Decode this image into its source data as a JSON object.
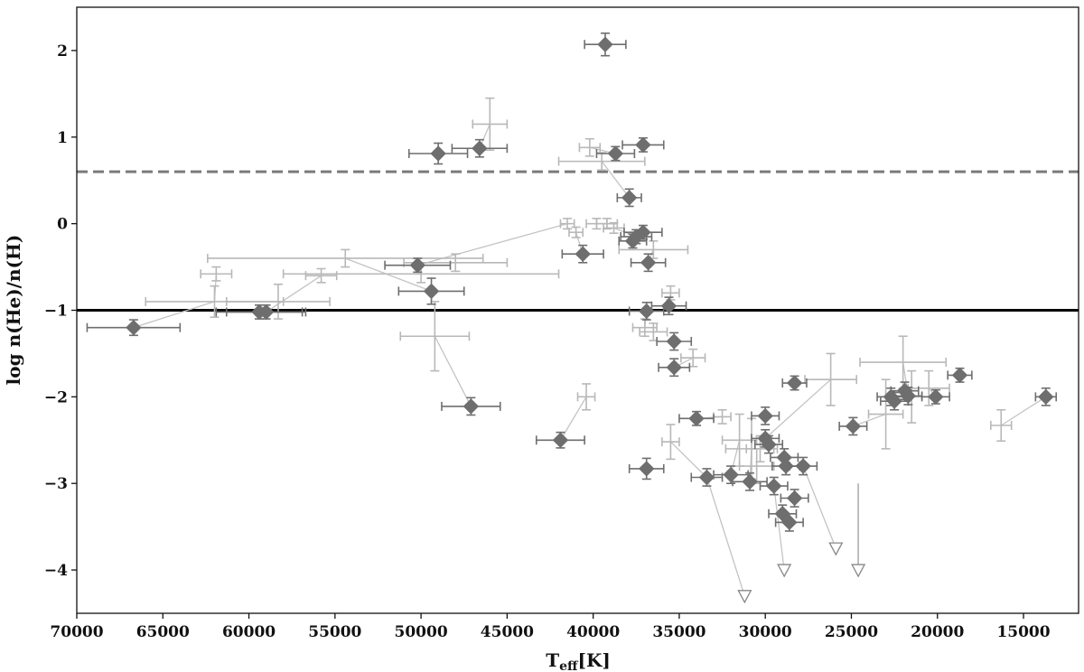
{
  "chart_data": {
    "type": "scatter",
    "xlabel": "T",
    "xlabel_sub": "eff",
    "xlabel_unit": "[K]",
    "ylabel": "log n(He)/n(H)",
    "xlim": [
      70000,
      11800
    ],
    "ylim": [
      -4.5,
      2.5
    ],
    "x_ticks": [
      70000,
      65000,
      60000,
      55000,
      50000,
      45000,
      40000,
      35000,
      30000,
      25000,
      20000,
      15000
    ],
    "x_tick_labels": [
      "70000",
      "65000",
      "60000",
      "55000",
      "50000",
      "45000",
      "40000",
      "35000",
      "30000",
      "25000",
      "20000",
      "15000"
    ],
    "y_ticks": [
      2,
      1,
      0,
      -1,
      -2,
      -3,
      -4
    ],
    "y_tick_labels": [
      "2",
      "1",
      "0",
      "−1",
      "−2",
      "−3",
      "−4"
    ],
    "grid": false,
    "reference_lines": [
      {
        "y": 0.6,
        "style": "dashed",
        "color": "#7a7a7a"
      },
      {
        "y": -1.0,
        "style": "solid",
        "color": "#000000"
      }
    ],
    "colors": {
      "dark": "#6e6e6e",
      "light": "#b8b8b8",
      "link": "#c4c4c4"
    },
    "dark_points": [
      {
        "x": 66700,
        "y": -1.2,
        "xerr": 2700,
        "yerr": 0.09
      },
      {
        "x": 59400,
        "y": -1.02,
        "xerr": 2500,
        "yerr": 0.08
      },
      {
        "x": 59000,
        "y": -1.02,
        "xerr": 2300,
        "yerr": 0.08
      },
      {
        "x": 50200,
        "y": -0.48,
        "xerr": 1900,
        "yerr": 0.08
      },
      {
        "x": 49400,
        "y": -0.78,
        "xerr": 1900,
        "yerr": 0.15
      },
      {
        "x": 49000,
        "y": 0.81,
        "xerr": 1700,
        "yerr": 0.12
      },
      {
        "x": 46600,
        "y": 0.87,
        "xerr": 1600,
        "yerr": 0.1
      },
      {
        "x": 47100,
        "y": -2.11,
        "xerr": 1700,
        "yerr": 0.1
      },
      {
        "x": 41900,
        "y": -2.5,
        "xerr": 1400,
        "yerr": 0.09
      },
      {
        "x": 40600,
        "y": -0.35,
        "xerr": 1200,
        "yerr": 0.1
      },
      {
        "x": 39300,
        "y": 2.07,
        "xerr": 1200,
        "yerr": 0.13
      },
      {
        "x": 38700,
        "y": 0.81,
        "xerr": 1100,
        "yerr": 0.08
      },
      {
        "x": 37100,
        "y": 0.91,
        "xerr": 1200,
        "yerr": 0.08
      },
      {
        "x": 37900,
        "y": 0.3,
        "xerr": 700,
        "yerr": 0.1
      },
      {
        "x": 37700,
        "y": -0.2,
        "xerr": 800,
        "yerr": 0.08
      },
      {
        "x": 37500,
        "y": -0.15,
        "xerr": 900,
        "yerr": 0.08
      },
      {
        "x": 37100,
        "y": -0.1,
        "xerr": 1100,
        "yerr": 0.08
      },
      {
        "x": 36800,
        "y": -0.45,
        "xerr": 1000,
        "yerr": 0.1
      },
      {
        "x": 36900,
        "y": -1.01,
        "xerr": 1000,
        "yerr": 0.1
      },
      {
        "x": 36900,
        "y": -2.83,
        "xerr": 1000,
        "yerr": 0.12
      },
      {
        "x": 35600,
        "y": -0.95,
        "xerr": 1000,
        "yerr": 0.1
      },
      {
        "x": 35300,
        "y": -1.36,
        "xerr": 1000,
        "yerr": 0.1
      },
      {
        "x": 35300,
        "y": -1.66,
        "xerr": 900,
        "yerr": 0.1
      },
      {
        "x": 34000,
        "y": -2.25,
        "xerr": 1000,
        "yerr": 0.08
      },
      {
        "x": 33400,
        "y": -2.93,
        "xerr": 900,
        "yerr": 0.1
      },
      {
        "x": 32000,
        "y": -2.9,
        "xerr": 1000,
        "yerr": 0.1
      },
      {
        "x": 30900,
        "y": -2.98,
        "xerr": 1000,
        "yerr": 0.1
      },
      {
        "x": 30000,
        "y": -2.22,
        "xerr": 800,
        "yerr": 0.1
      },
      {
        "x": 30000,
        "y": -2.48,
        "xerr": 800,
        "yerr": 0.1
      },
      {
        "x": 29800,
        "y": -2.55,
        "xerr": 800,
        "yerr": 0.1
      },
      {
        "x": 29500,
        "y": -3.03,
        "xerr": 800,
        "yerr": 0.1
      },
      {
        "x": 28900,
        "y": -2.7,
        "xerr": 800,
        "yerr": 0.1
      },
      {
        "x": 28800,
        "y": -2.8,
        "xerr": 800,
        "yerr": 0.1
      },
      {
        "x": 29000,
        "y": -3.35,
        "xerr": 800,
        "yerr": 0.1
      },
      {
        "x": 28600,
        "y": -3.45,
        "xerr": 800,
        "yerr": 0.1
      },
      {
        "x": 28300,
        "y": -3.17,
        "xerr": 800,
        "yerr": 0.1
      },
      {
        "x": 27800,
        "y": -2.8,
        "xerr": 800,
        "yerr": 0.1
      },
      {
        "x": 28300,
        "y": -1.84,
        "xerr": 700,
        "yerr": 0.08
      },
      {
        "x": 24900,
        "y": -2.34,
        "xerr": 800,
        "yerr": 0.1
      },
      {
        "x": 22700,
        "y": -2.0,
        "xerr": 800,
        "yerr": 0.1
      },
      {
        "x": 22500,
        "y": -2.05,
        "xerr": 800,
        "yerr": 0.1
      },
      {
        "x": 21900,
        "y": -1.93,
        "xerr": 800,
        "yerr": 0.1
      },
      {
        "x": 21700,
        "y": -1.99,
        "xerr": 800,
        "yerr": 0.1
      },
      {
        "x": 20100,
        "y": -2.0,
        "xerr": 800,
        "yerr": 0.08
      },
      {
        "x": 18700,
        "y": -1.75,
        "xerr": 700,
        "yerr": 0.08
      },
      {
        "x": 13700,
        "y": -2.0,
        "xerr": 600,
        "yerr": 0.1
      }
    ],
    "light_points": [
      {
        "x": 61900,
        "y": -0.58,
        "xerr": 900,
        "yerr": 0.08
      },
      {
        "x": 62000,
        "y": -0.9,
        "xerr": 4000,
        "yerr": 0.18
      },
      {
        "x": 58300,
        "y": -0.9,
        "xerr": 3000,
        "yerr": 0.2
      },
      {
        "x": 55800,
        "y": -0.6,
        "xerr": 900,
        "yerr": 0.08
      },
      {
        "x": 54400,
        "y": -0.4,
        "xerr": 8000,
        "yerr": 0.1
      },
      {
        "x": 50000,
        "y": -0.58,
        "xerr": 8000,
        "yerr": 0.1
      },
      {
        "x": 48000,
        "y": -0.45,
        "xerr": 3000,
        "yerr": 0.1
      },
      {
        "x": 49200,
        "y": -1.3,
        "xerr": 2000,
        "yerr": 0.4
      },
      {
        "x": 46000,
        "y": 1.15,
        "xerr": 1000,
        "yerr": 0.3
      },
      {
        "x": 40400,
        "y": -2.0,
        "xerr": 500,
        "yerr": 0.15
      },
      {
        "x": 41500,
        "y": 0.0,
        "xerr": 400,
        "yerr": 0.06
      },
      {
        "x": 41000,
        "y": -0.1,
        "xerr": 400,
        "yerr": 0.06
      },
      {
        "x": 40200,
        "y": 0.88,
        "xerr": 600,
        "yerr": 0.1
      },
      {
        "x": 39500,
        "y": 0.72,
        "xerr": 2500,
        "yerr": 0.1
      },
      {
        "x": 39800,
        "y": 0.0,
        "xerr": 600,
        "yerr": 0.06
      },
      {
        "x": 39200,
        "y": 0.0,
        "xerr": 600,
        "yerr": 0.06
      },
      {
        "x": 38800,
        "y": -0.05,
        "xerr": 600,
        "yerr": 0.06
      },
      {
        "x": 36500,
        "y": -0.3,
        "xerr": 2000,
        "yerr": 0.1
      },
      {
        "x": 37000,
        "y": -1.2,
        "xerr": 700,
        "yerr": 0.1
      },
      {
        "x": 36500,
        "y": -1.25,
        "xerr": 800,
        "yerr": 0.1
      },
      {
        "x": 35500,
        "y": -0.8,
        "xerr": 500,
        "yerr": 0.08
      },
      {
        "x": 34200,
        "y": -1.55,
        "xerr": 700,
        "yerr": 0.1
      },
      {
        "x": 35500,
        "y": -2.52,
        "xerr": 500,
        "yerr": 0.2
      },
      {
        "x": 32500,
        "y": -2.23,
        "xerr": 500,
        "yerr": 0.08
      },
      {
        "x": 31500,
        "y": -2.5,
        "xerr": 1000,
        "yerr": 0.3
      },
      {
        "x": 30800,
        "y": -2.6,
        "xerr": 1500,
        "yerr": 0.35
      },
      {
        "x": 30500,
        "y": -2.8,
        "xerr": 1000,
        "yerr": 0.2
      },
      {
        "x": 30300,
        "y": -2.6,
        "xerr": 800,
        "yerr": 0.15
      },
      {
        "x": 26200,
        "y": -1.8,
        "xerr": 1500,
        "yerr": 0.3
      },
      {
        "x": 23000,
        "y": -2.2,
        "xerr": 1000,
        "yerr": 0.4
      },
      {
        "x": 22000,
        "y": -1.6,
        "xerr": 2500,
        "yerr": 0.3
      },
      {
        "x": 21500,
        "y": -2.0,
        "xerr": 1500,
        "yerr": 0.3
      },
      {
        "x": 20500,
        "y": -1.9,
        "xerr": 1200,
        "yerr": 0.2
      },
      {
        "x": 16300,
        "y": -2.33,
        "xerr": 600,
        "yerr": 0.18
      }
    ],
    "upper_limits": [
      {
        "x": 31200,
        "y": -4.3
      },
      {
        "x": 28900,
        "y": -4.0
      },
      {
        "x": 25900,
        "y": -3.75
      },
      {
        "x": 24600,
        "y": -4.0,
        "arrow_from": -3.0
      }
    ],
    "connectors": [
      [
        [
          66700,
          -1.2
        ],
        [
          62000,
          -0.9
        ]
      ],
      [
        [
          62000,
          -0.9
        ],
        [
          61900,
          -0.58
        ]
      ],
      [
        [
          59000,
          -1.02
        ],
        [
          55800,
          -0.6
        ]
      ],
      [
        [
          50200,
          -0.48
        ],
        [
          41500,
          0.0
        ]
      ],
      [
        [
          49400,
          -0.78
        ],
        [
          54400,
          -0.4
        ]
      ],
      [
        [
          47100,
          -2.11
        ],
        [
          49200,
          -1.3
        ]
      ],
      [
        [
          46600,
          0.87
        ],
        [
          46000,
          1.15
        ]
      ],
      [
        [
          41900,
          -2.5
        ],
        [
          40400,
          -2.0
        ]
      ],
      [
        [
          40600,
          -0.35
        ],
        [
          41000,
          -0.1
        ]
      ],
      [
        [
          38700,
          0.81
        ],
        [
          40200,
          0.88
        ]
      ],
      [
        [
          37900,
          0.3
        ],
        [
          39500,
          0.72
        ]
      ],
      [
        [
          37500,
          -0.15
        ],
        [
          38800,
          -0.05
        ]
      ],
      [
        [
          36800,
          -0.45
        ],
        [
          36500,
          -0.3
        ]
      ],
      [
        [
          36900,
          -1.01
        ],
        [
          37000,
          -1.2
        ]
      ],
      [
        [
          35600,
          -0.95
        ],
        [
          35500,
          -0.8
        ]
      ],
      [
        [
          35300,
          -1.66
        ],
        [
          34200,
          -1.55
        ]
      ],
      [
        [
          33400,
          -2.93
        ],
        [
          35500,
          -2.52
        ]
      ],
      [
        [
          34000,
          -2.25
        ],
        [
          32500,
          -2.23
        ]
      ],
      [
        [
          32000,
          -2.9
        ],
        [
          31500,
          -2.5
        ]
      ],
      [
        [
          30900,
          -2.98
        ],
        [
          30800,
          -2.6
        ]
      ],
      [
        [
          30000,
          -2.48
        ],
        [
          26200,
          -1.8
        ]
      ],
      [
        [
          24900,
          -2.34
        ],
        [
          23000,
          -2.2
        ]
      ],
      [
        [
          22700,
          -2.0
        ],
        [
          21500,
          -2.0
        ]
      ],
      [
        [
          21700,
          -1.99
        ],
        [
          22000,
          -1.6
        ]
      ],
      [
        [
          20100,
          -2.0
        ],
        [
          20500,
          -1.9
        ]
      ],
      [
        [
          13700,
          -2.0
        ],
        [
          16300,
          -2.33
        ]
      ],
      [
        [
          33400,
          -2.93
        ],
        [
          31200,
          -4.3
        ]
      ],
      [
        [
          29500,
          -3.03
        ],
        [
          28900,
          -4.0
        ]
      ],
      [
        [
          27800,
          -2.8
        ],
        [
          25900,
          -3.75
        ]
      ]
    ]
  }
}
